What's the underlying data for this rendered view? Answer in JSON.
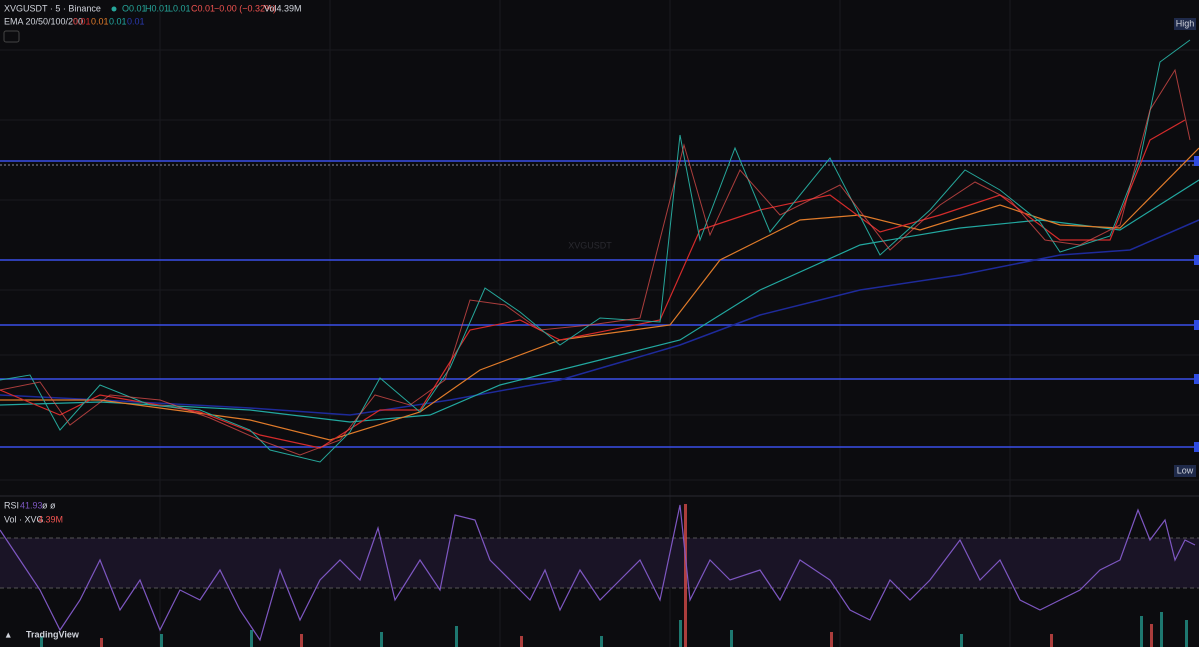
{
  "header": {
    "symbol": "XVGUSDT · 5 · Binance",
    "open": "O0.01",
    "high": "H0.01",
    "low": "L0.01",
    "close": "C0.01",
    "change": "−0.00 (−0.32%)",
    "volume": "Vol4.39M"
  },
  "ema": {
    "label": "EMA 20/50/100/200",
    "values": [
      "0.01",
      "0.01",
      "0.01",
      "0.01"
    ]
  },
  "watermark": "XVGUSDT",
  "price_labels": {
    "high": "High",
    "low": "Low"
  },
  "rsi": {
    "label": "RSI",
    "value": "41.93",
    "extra": "ø ø"
  },
  "vol": {
    "label": "Vol · XVG",
    "value": "4.39M"
  },
  "brand": "TradingView"
}
